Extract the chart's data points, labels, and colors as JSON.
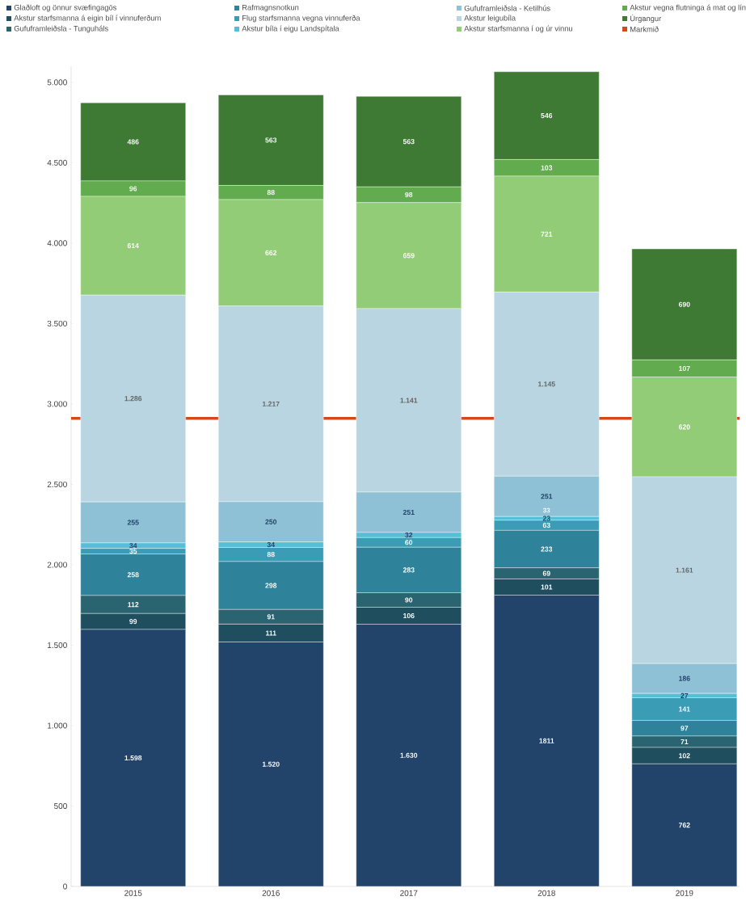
{
  "chart_data": {
    "type": "bar",
    "stacked": true,
    "categories": [
      "2015",
      "2016",
      "2017",
      "2018",
      "2019"
    ],
    "series": [
      {
        "name": "Glaðloft og önnur svæfingagös",
        "color": "#22436a",
        "values": [
          1598,
          1520,
          1630,
          1811,
          762
        ],
        "value_labels": [
          "1.598",
          "1.520",
          "1.630",
          "1811",
          "762"
        ]
      },
      {
        "name": "Akstur starfsmanna á eigin bíl í vinnuferðum",
        "color": "#1f4e5f",
        "values": [
          99,
          111,
          106,
          101,
          102
        ],
        "value_labels": [
          "99",
          "111",
          "106",
          "101",
          "102"
        ]
      },
      {
        "name": "Gufuframleiðsla - Tunguháls",
        "color": "#2a6470",
        "values": [
          112,
          91,
          90,
          69,
          71
        ],
        "value_labels": [
          "112",
          "91",
          "90",
          "69",
          "71"
        ]
      },
      {
        "name": "Rafmagnsnotkun",
        "color": "#2e8299",
        "values": [
          258,
          298,
          283,
          233,
          97
        ],
        "value_labels": [
          "258",
          "298",
          "283",
          "233",
          "97"
        ]
      },
      {
        "name": "Flug starfsmanna vegna vinnuferða",
        "color": "#3b9cb5",
        "values": [
          35,
          88,
          60,
          63,
          141
        ],
        "value_labels": [
          "35",
          "88",
          "60",
          "63",
          "141"
        ]
      },
      {
        "name": "Akstur bíla í eigu Landspítala",
        "color": "#56bfd6",
        "values": [
          34,
          34,
          32,
          23,
          27
        ],
        "value_labels": [
          "34",
          "34",
          "32",
          "23",
          "27"
        ]
      },
      {
        "name": "Gufuframleiðsla - Ketilhús",
        "color": "#8fc1d6",
        "values": [
          255,
          250,
          251,
          251,
          186
        ],
        "value_labels": [
          "255",
          "250",
          "251",
          "251",
          "186"
        ]
      },
      {
        "name": "Akstur leigubíla",
        "color": "#b9d5e1",
        "values": [
          1286,
          1217,
          1141,
          1145,
          1161
        ],
        "value_labels": [
          "1.286",
          "1.217",
          "1.141",
          "1.145",
          "1.161"
        ]
      },
      {
        "name": "Akstur starfsmanna í og úr vinnu",
        "color": "#93cc77",
        "values": [
          614,
          662,
          659,
          721,
          620
        ],
        "value_labels": [
          "614",
          "662",
          "659",
          "721",
          "620"
        ]
      },
      {
        "name": "Akstur vegna flutninga á mat og lín",
        "color": "#62ab4f",
        "values": [
          96,
          88,
          98,
          103,
          107
        ],
        "value_labels": [
          "96",
          "88",
          "98",
          "103",
          "107"
        ]
      },
      {
        "name": "Úrgangur",
        "color": "#3f7a34",
        "values": [
          486,
          563,
          563,
          546,
          690
        ],
        "value_labels": [
          "486",
          "563",
          "563",
          "546",
          "690"
        ]
      }
    ],
    "ylim": [
      0,
      5100
    ],
    "yticks": [
      0,
      {
        "value": 500,
        "label": "500"
      },
      {
        "value": 1000,
        "label": "1.000"
      },
      {
        "value": 1500,
        "label": "1.500"
      },
      {
        "value": 2000,
        "label": "2.000"
      },
      {
        "value": 2500,
        "label": "2.500"
      },
      {
        "value": 3000,
        "label": "3.000"
      },
      {
        "value": 3500,
        "label": "3.500"
      },
      {
        "value": 4000,
        "label": "4.000"
      },
      {
        "value": 4500,
        "label": "4.500"
      },
      {
        "value": 5000,
        "label": "5.000"
      }
    ],
    "ref_lines": [
      {
        "axis": "y",
        "value": 2910,
        "label": "Markmið",
        "color": "#d04a1a"
      }
    ],
    "annotations": [
      "33"
    ],
    "legend": "top"
  }
}
